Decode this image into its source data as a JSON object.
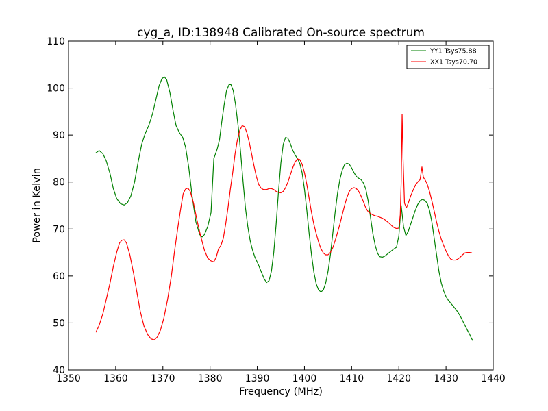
{
  "chart_data": {
    "type": "line",
    "title": "cyg_a, ID:138948 Calibrated On-source spectrum",
    "xlabel": "Frequency (MHz)",
    "ylabel": "Power in Kelvin",
    "xlim": [
      1350,
      1440
    ],
    "ylim": [
      40,
      110
    ],
    "xticks": [
      1350,
      1360,
      1370,
      1380,
      1390,
      1400,
      1410,
      1420,
      1430,
      1440
    ],
    "yticks": [
      40,
      50,
      60,
      70,
      80,
      90,
      100,
      110
    ],
    "grid": false,
    "legend_position": "top-right",
    "series": [
      {
        "name": "YY1 Tsys75.88",
        "color": "#008000",
        "points": [
          [
            1355.8,
            86.2
          ],
          [
            1356.5,
            86.7
          ],
          [
            1357.3,
            86.0
          ],
          [
            1358.0,
            84.5
          ],
          [
            1358.8,
            81.8
          ],
          [
            1359.5,
            78.6
          ],
          [
            1360.2,
            76.5
          ],
          [
            1361.0,
            75.4
          ],
          [
            1361.8,
            75.1
          ],
          [
            1362.5,
            75.6
          ],
          [
            1363.2,
            77.0
          ],
          [
            1364.0,
            80.0
          ],
          [
            1364.8,
            84.5
          ],
          [
            1365.5,
            88.0
          ],
          [
            1366.2,
            90.2
          ],
          [
            1367.0,
            92.0
          ],
          [
            1367.8,
            94.5
          ],
          [
            1368.5,
            97.5
          ],
          [
            1369.2,
            100.5
          ],
          [
            1369.8,
            102.0
          ],
          [
            1370.3,
            102.4
          ],
          [
            1370.8,
            101.8
          ],
          [
            1371.5,
            99.0
          ],
          [
            1372.2,
            95.0
          ],
          [
            1372.8,
            92.0
          ],
          [
            1373.5,
            90.5
          ],
          [
            1374.2,
            89.5
          ],
          [
            1374.8,
            87.5
          ],
          [
            1375.5,
            83.0
          ],
          [
            1376.2,
            77.0
          ],
          [
            1377.0,
            71.5
          ],
          [
            1377.8,
            68.8
          ],
          [
            1378.3,
            68.3
          ],
          [
            1378.8,
            68.8
          ],
          [
            1379.5,
            70.5
          ],
          [
            1380.2,
            73.5
          ],
          [
            1380.8,
            85.0
          ],
          [
            1381.5,
            87.0
          ],
          [
            1382.0,
            89.0
          ],
          [
            1382.5,
            93.0
          ],
          [
            1383.0,
            96.5
          ],
          [
            1383.5,
            99.5
          ],
          [
            1384.0,
            100.7
          ],
          [
            1384.4,
            100.8
          ],
          [
            1384.9,
            99.5
          ],
          [
            1385.4,
            96.5
          ],
          [
            1386.0,
            91.5
          ],
          [
            1386.5,
            86.0
          ],
          [
            1387.0,
            80.0
          ],
          [
            1387.5,
            74.5
          ],
          [
            1388.0,
            70.5
          ],
          [
            1388.5,
            67.5
          ],
          [
            1389.0,
            65.5
          ],
          [
            1389.5,
            64.0
          ],
          [
            1390.2,
            62.5
          ],
          [
            1390.8,
            61.0
          ],
          [
            1391.5,
            59.3
          ],
          [
            1392.0,
            58.6
          ],
          [
            1392.5,
            59.0
          ],
          [
            1393.0,
            61.0
          ],
          [
            1393.5,
            65.0
          ],
          [
            1394.0,
            71.0
          ],
          [
            1394.5,
            78.0
          ],
          [
            1395.0,
            84.0
          ],
          [
            1395.5,
            88.0
          ],
          [
            1396.0,
            89.5
          ],
          [
            1396.5,
            89.3
          ],
          [
            1397.0,
            88.2
          ],
          [
            1397.5,
            86.8
          ],
          [
            1398.0,
            85.8
          ],
          [
            1398.5,
            85.0
          ],
          [
            1399.0,
            84.0
          ],
          [
            1399.5,
            82.0
          ],
          [
            1400.0,
            78.5
          ],
          [
            1400.5,
            74.0
          ],
          [
            1401.0,
            69.0
          ],
          [
            1401.5,
            64.5
          ],
          [
            1402.0,
            60.8
          ],
          [
            1402.5,
            58.3
          ],
          [
            1403.0,
            57.0
          ],
          [
            1403.5,
            56.6
          ],
          [
            1404.0,
            57.0
          ],
          [
            1404.5,
            58.5
          ],
          [
            1405.0,
            61.0
          ],
          [
            1405.5,
            64.5
          ],
          [
            1406.0,
            69.0
          ],
          [
            1406.5,
            73.5
          ],
          [
            1407.0,
            77.5
          ],
          [
            1407.5,
            80.5
          ],
          [
            1408.0,
            82.5
          ],
          [
            1408.5,
            83.7
          ],
          [
            1409.0,
            84.0
          ],
          [
            1409.5,
            83.8
          ],
          [
            1410.0,
            83.0
          ],
          [
            1410.5,
            82.0
          ],
          [
            1411.0,
            81.2
          ],
          [
            1411.5,
            80.8
          ],
          [
            1412.0,
            80.5
          ],
          [
            1412.5,
            79.8
          ],
          [
            1413.0,
            78.5
          ],
          [
            1413.5,
            76.0
          ],
          [
            1414.0,
            72.5
          ],
          [
            1414.5,
            69.0
          ],
          [
            1415.0,
            66.5
          ],
          [
            1415.5,
            64.8
          ],
          [
            1416.0,
            64.1
          ],
          [
            1416.5,
            64.0
          ],
          [
            1417.0,
            64.2
          ],
          [
            1417.5,
            64.6
          ],
          [
            1418.0,
            65.0
          ],
          [
            1418.5,
            65.4
          ],
          [
            1419.0,
            65.8
          ],
          [
            1419.5,
            66.1
          ],
          [
            1420.0,
            68.5
          ],
          [
            1420.5,
            75.0
          ],
          [
            1421.0,
            70.5
          ],
          [
            1421.5,
            68.6
          ],
          [
            1422.0,
            69.5
          ],
          [
            1422.5,
            71.0
          ],
          [
            1423.0,
            72.5
          ],
          [
            1423.5,
            74.0
          ],
          [
            1424.0,
            75.2
          ],
          [
            1424.5,
            76.0
          ],
          [
            1425.0,
            76.3
          ],
          [
            1425.5,
            76.1
          ],
          [
            1426.0,
            75.5
          ],
          [
            1426.5,
            74.0
          ],
          [
            1427.0,
            71.5
          ],
          [
            1427.5,
            68.0
          ],
          [
            1428.0,
            64.5
          ],
          [
            1428.5,
            61.0
          ],
          [
            1429.0,
            58.5
          ],
          [
            1429.5,
            56.8
          ],
          [
            1430.0,
            55.6
          ],
          [
            1430.5,
            54.8
          ],
          [
            1431.0,
            54.2
          ],
          [
            1431.5,
            53.6
          ],
          [
            1432.0,
            53.0
          ],
          [
            1432.5,
            52.3
          ],
          [
            1433.0,
            51.5
          ],
          [
            1433.5,
            50.5
          ],
          [
            1434.0,
            49.5
          ],
          [
            1434.5,
            48.5
          ],
          [
            1435.0,
            47.6
          ],
          [
            1435.4,
            46.7
          ],
          [
            1435.7,
            46.2
          ]
        ]
      },
      {
        "name": "XX1 Tsys70.70",
        "color": "#ff0000",
        "points": [
          [
            1355.8,
            48.0
          ],
          [
            1356.5,
            49.5
          ],
          [
            1357.3,
            52.0
          ],
          [
            1358.0,
            55.0
          ],
          [
            1358.8,
            58.5
          ],
          [
            1359.5,
            62.0
          ],
          [
            1360.2,
            65.0
          ],
          [
            1360.8,
            67.0
          ],
          [
            1361.3,
            67.6
          ],
          [
            1361.8,
            67.7
          ],
          [
            1362.3,
            67.0
          ],
          [
            1363.0,
            64.5
          ],
          [
            1363.8,
            60.5
          ],
          [
            1364.5,
            56.5
          ],
          [
            1365.2,
            52.5
          ],
          [
            1366.0,
            49.3
          ],
          [
            1366.8,
            47.5
          ],
          [
            1367.5,
            46.6
          ],
          [
            1368.2,
            46.4
          ],
          [
            1368.8,
            47.0
          ],
          [
            1369.5,
            48.5
          ],
          [
            1370.2,
            51.0
          ],
          [
            1371.0,
            55.0
          ],
          [
            1371.8,
            60.0
          ],
          [
            1372.5,
            65.5
          ],
          [
            1373.2,
            70.5
          ],
          [
            1373.8,
            74.5
          ],
          [
            1374.3,
            77.5
          ],
          [
            1374.8,
            78.5
          ],
          [
            1375.3,
            78.7
          ],
          [
            1375.8,
            78.0
          ],
          [
            1376.5,
            75.5
          ],
          [
            1377.2,
            72.0
          ],
          [
            1378.0,
            68.5
          ],
          [
            1378.8,
            65.5
          ],
          [
            1379.5,
            63.8
          ],
          [
            1380.2,
            63.2
          ],
          [
            1380.8,
            63.0
          ],
          [
            1381.3,
            64.0
          ],
          [
            1381.8,
            65.8
          ],
          [
            1382.3,
            66.5
          ],
          [
            1382.8,
            68.0
          ],
          [
            1383.3,
            71.0
          ],
          [
            1383.8,
            74.5
          ],
          [
            1384.3,
            78.5
          ],
          [
            1384.8,
            82.0
          ],
          [
            1385.3,
            86.0
          ],
          [
            1385.8,
            89.0
          ],
          [
            1386.3,
            91.0
          ],
          [
            1386.8,
            92.0
          ],
          [
            1387.3,
            91.8
          ],
          [
            1387.8,
            90.5
          ],
          [
            1388.3,
            88.5
          ],
          [
            1388.8,
            86.0
          ],
          [
            1389.3,
            83.5
          ],
          [
            1389.8,
            81.2
          ],
          [
            1390.3,
            79.5
          ],
          [
            1390.8,
            78.7
          ],
          [
            1391.3,
            78.4
          ],
          [
            1392.0,
            78.4
          ],
          [
            1392.5,
            78.6
          ],
          [
            1393.0,
            78.6
          ],
          [
            1393.5,
            78.4
          ],
          [
            1394.0,
            78.0
          ],
          [
            1394.5,
            77.8
          ],
          [
            1395.0,
            77.7
          ],
          [
            1395.5,
            78.0
          ],
          [
            1396.0,
            78.8
          ],
          [
            1396.5,
            80.0
          ],
          [
            1397.0,
            81.5
          ],
          [
            1397.5,
            83.0
          ],
          [
            1398.0,
            84.2
          ],
          [
            1398.5,
            84.9
          ],
          [
            1399.0,
            84.8
          ],
          [
            1399.5,
            83.8
          ],
          [
            1400.0,
            82.0
          ],
          [
            1400.5,
            79.5
          ],
          [
            1401.0,
            76.5
          ],
          [
            1401.5,
            73.5
          ],
          [
            1402.0,
            71.0
          ],
          [
            1402.5,
            69.0
          ],
          [
            1403.0,
            67.2
          ],
          [
            1403.5,
            65.8
          ],
          [
            1404.0,
            64.9
          ],
          [
            1404.5,
            64.5
          ],
          [
            1405.0,
            64.5
          ],
          [
            1405.5,
            65.0
          ],
          [
            1406.0,
            66.0
          ],
          [
            1406.5,
            67.5
          ],
          [
            1407.0,
            69.2
          ],
          [
            1407.5,
            71.0
          ],
          [
            1408.0,
            73.0
          ],
          [
            1408.5,
            75.0
          ],
          [
            1409.0,
            76.7
          ],
          [
            1409.5,
            78.0
          ],
          [
            1410.0,
            78.6
          ],
          [
            1410.5,
            78.8
          ],
          [
            1411.0,
            78.6
          ],
          [
            1411.5,
            78.0
          ],
          [
            1412.0,
            77.0
          ],
          [
            1412.5,
            75.8
          ],
          [
            1413.0,
            74.5
          ],
          [
            1413.5,
            73.7
          ],
          [
            1414.0,
            73.3
          ],
          [
            1414.5,
            73.0
          ],
          [
            1415.0,
            72.8
          ],
          [
            1415.5,
            72.7
          ],
          [
            1416.0,
            72.5
          ],
          [
            1416.5,
            72.3
          ],
          [
            1417.0,
            72.0
          ],
          [
            1417.5,
            71.6
          ],
          [
            1418.0,
            71.2
          ],
          [
            1418.5,
            70.7
          ],
          [
            1419.0,
            70.3
          ],
          [
            1419.5,
            70.1
          ],
          [
            1420.0,
            70.2
          ],
          [
            1420.3,
            73.0
          ],
          [
            1420.5,
            80.0
          ],
          [
            1420.7,
            94.4
          ],
          [
            1420.9,
            85.0
          ],
          [
            1421.2,
            75.5
          ],
          [
            1421.6,
            74.5
          ],
          [
            1422.0,
            75.5
          ],
          [
            1422.5,
            77.0
          ],
          [
            1423.0,
            78.2
          ],
          [
            1423.5,
            79.3
          ],
          [
            1424.0,
            80.0
          ],
          [
            1424.5,
            80.5
          ],
          [
            1424.9,
            83.2
          ],
          [
            1425.2,
            81.0
          ],
          [
            1425.6,
            80.4
          ],
          [
            1426.0,
            79.6
          ],
          [
            1426.5,
            78.0
          ],
          [
            1427.0,
            76.0
          ],
          [
            1427.5,
            73.8
          ],
          [
            1428.0,
            71.5
          ],
          [
            1428.5,
            69.5
          ],
          [
            1429.0,
            67.8
          ],
          [
            1429.5,
            66.5
          ],
          [
            1430.0,
            65.3
          ],
          [
            1430.5,
            64.3
          ],
          [
            1431.0,
            63.6
          ],
          [
            1431.5,
            63.4
          ],
          [
            1432.0,
            63.4
          ],
          [
            1432.5,
            63.6
          ],
          [
            1433.0,
            64.0
          ],
          [
            1433.5,
            64.5
          ],
          [
            1434.0,
            64.9
          ],
          [
            1434.5,
            65.0
          ],
          [
            1435.0,
            65.0
          ],
          [
            1435.5,
            64.9
          ]
        ]
      }
    ]
  }
}
